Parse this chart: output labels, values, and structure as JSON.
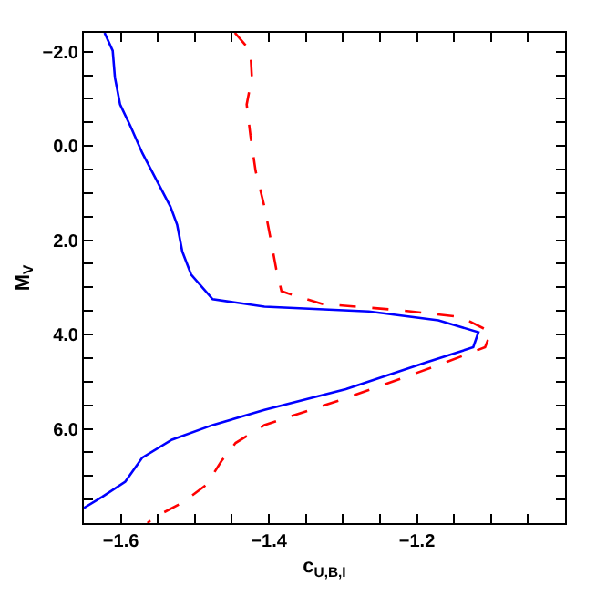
{
  "chart_data": {
    "type": "line",
    "xlabel": "c$_{U,B,I}$",
    "ylabel": "M$_{V}$",
    "xlim": [
      -1.65,
      -1.0
    ],
    "ylim": [
      8.0,
      -2.4
    ],
    "xticks": [
      {
        "value": -1.6,
        "label": "−1.6"
      },
      {
        "value": -1.55,
        "label": null
      },
      {
        "value": -1.5,
        "label": null
      },
      {
        "value": -1.45,
        "label": null
      },
      {
        "value": -1.4,
        "label": "−1.4"
      },
      {
        "value": -1.35,
        "label": null
      },
      {
        "value": -1.3,
        "label": null
      },
      {
        "value": -1.25,
        "label": null
      },
      {
        "value": -1.2,
        "label": "−1.2"
      },
      {
        "value": -1.15,
        "label": null
      },
      {
        "value": -1.1,
        "label": null
      },
      {
        "value": -1.05,
        "label": null
      }
    ],
    "yticks": [
      {
        "value": -2,
        "label": "−2.0"
      },
      {
        "value": -1.5,
        "label": null
      },
      {
        "value": -1,
        "label": null
      },
      {
        "value": -0.5,
        "label": null
      },
      {
        "value": 0,
        "label": "0.0"
      },
      {
        "value": 0.5,
        "label": null
      },
      {
        "value": 1,
        "label": null
      },
      {
        "value": 1.5,
        "label": null
      },
      {
        "value": 2,
        "label": "2.0"
      },
      {
        "value": 2.5,
        "label": null
      },
      {
        "value": 3,
        "label": null
      },
      {
        "value": 3.5,
        "label": null
      },
      {
        "value": 4,
        "label": "4.0"
      },
      {
        "value": 4.5,
        "label": null
      },
      {
        "value": 5,
        "label": null
      },
      {
        "value": 5.5,
        "label": null
      },
      {
        "value": 6,
        "label": "6.0"
      },
      {
        "value": 6.5,
        "label": null
      },
      {
        "value": 7,
        "label": null
      },
      {
        "value": 7.5,
        "label": null
      }
    ],
    "grid": false,
    "marker": "none",
    "series": [
      {
        "color": "#0000ff",
        "line_style": "solid",
        "x": [
          -1.622,
          -1.611,
          -1.608,
          -1.601,
          -1.587,
          -1.571,
          -1.552,
          -1.533,
          -1.524,
          -1.517,
          -1.505,
          -1.476,
          -1.406,
          -1.265,
          -1.171,
          -1.117,
          -1.124,
          -1.187,
          -1.296,
          -1.406,
          -1.476,
          -1.531,
          -1.571,
          -1.594,
          -1.625,
          -1.65
        ],
        "values": [
          -2.4,
          -2.02,
          -1.45,
          -0.88,
          -0.42,
          0.15,
          0.72,
          1.29,
          1.67,
          2.24,
          2.73,
          3.25,
          3.41,
          3.51,
          3.7,
          3.95,
          4.27,
          4.59,
          5.16,
          5.6,
          5.92,
          6.23,
          6.61,
          7.12,
          7.44,
          7.68
        ]
      },
      {
        "color": "#ff0000",
        "line_style": "dashed",
        "x": [
          -1.446,
          -1.425,
          -1.423,
          -1.43,
          -1.425,
          -1.418,
          -1.406,
          -1.399,
          -1.39,
          -1.383,
          -1.374,
          -1.328,
          -1.226,
          -1.14,
          -1.1,
          -1.108,
          -1.171,
          -1.296,
          -1.406,
          -1.445,
          -1.464,
          -1.484,
          -1.516,
          -1.555,
          -1.564
        ],
        "values": [
          -2.4,
          -2.02,
          -1.45,
          -0.88,
          -0.23,
          0.53,
          1.29,
          1.86,
          2.62,
          3.08,
          3.13,
          3.35,
          3.48,
          3.63,
          3.95,
          4.27,
          4.65,
          5.35,
          5.92,
          6.3,
          6.68,
          7.18,
          7.56,
          7.88,
          8.0
        ]
      }
    ]
  }
}
